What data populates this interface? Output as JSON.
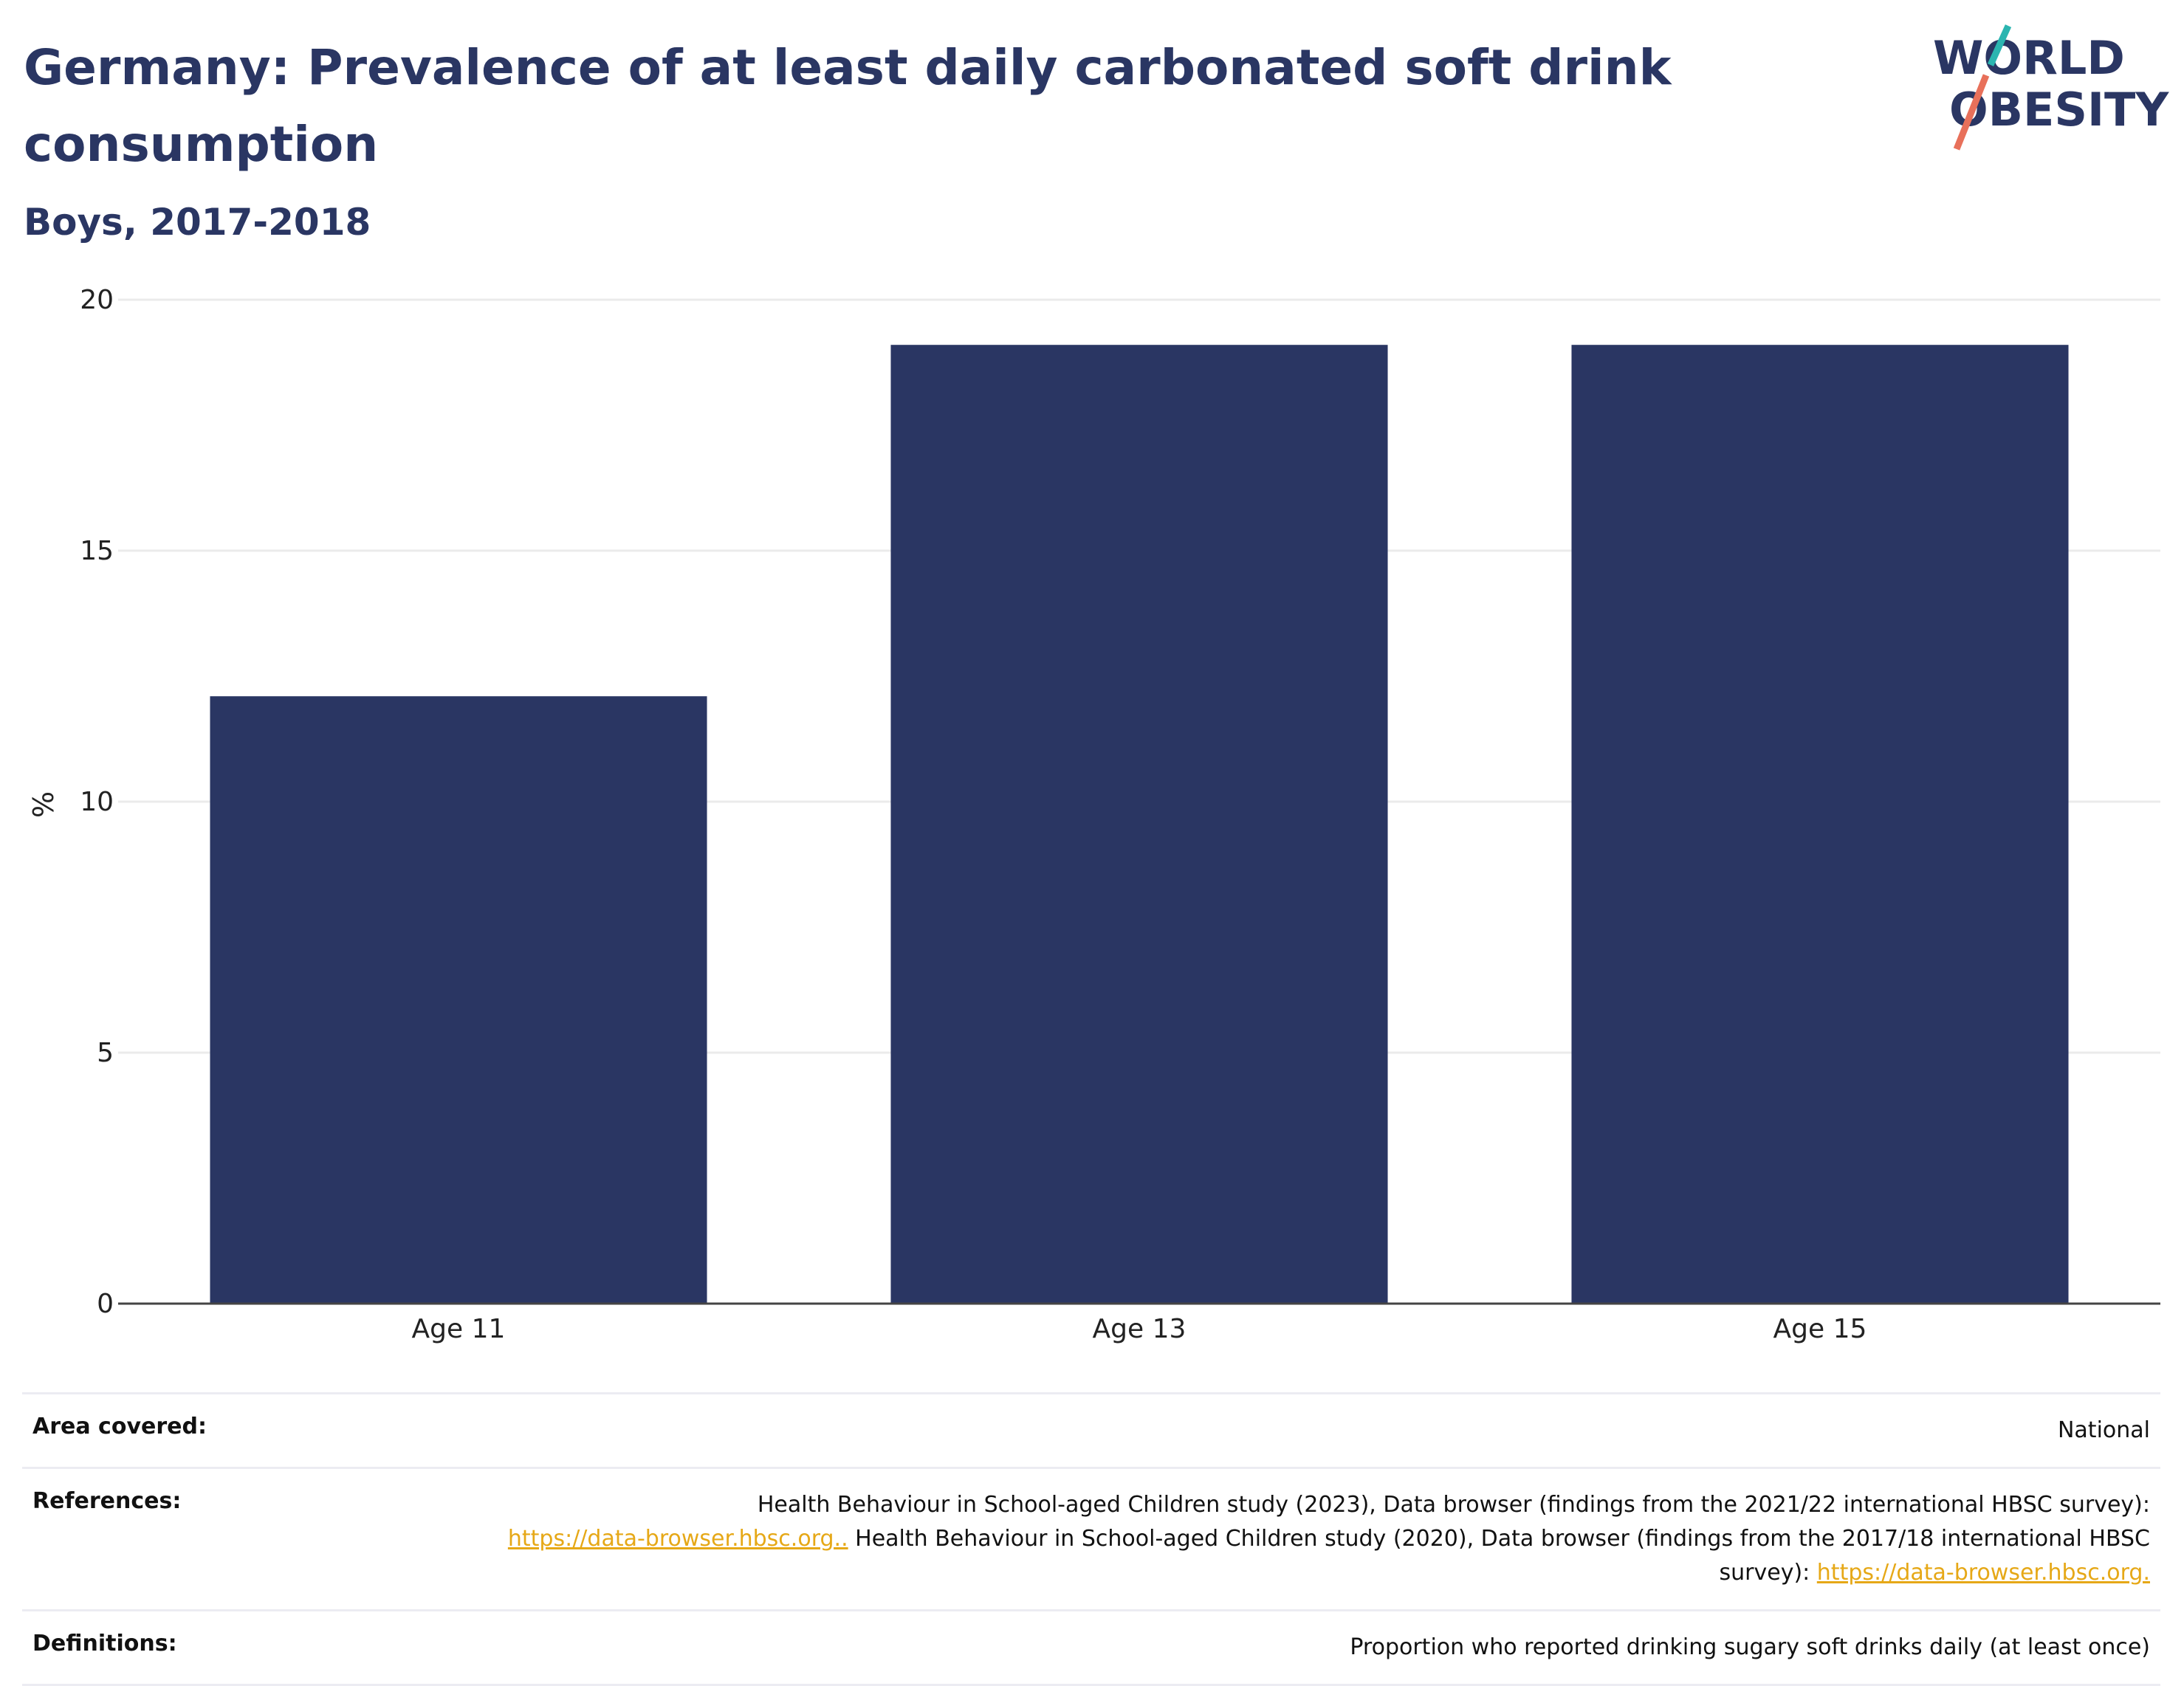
{
  "title": "Germany: Prevalence of at least daily carbonated soft drink consumption",
  "subtitle": "Boys, 2017-2018",
  "logo": {
    "line1": "WORLD",
    "line2": "OBESITY"
  },
  "colors": {
    "bar": "#2a3663",
    "title": "#2a3663",
    "link": "#e6a817",
    "accent_teal": "#2bb5b0",
    "accent_coral": "#e8705a"
  },
  "chart_data": {
    "type": "bar",
    "categories": [
      "Age 11",
      "Age 13",
      "Age 15"
    ],
    "values": [
      12.1,
      19.1,
      19.1
    ],
    "ylabel": "%",
    "xlabel": "",
    "ylim": [
      0,
      20
    ],
    "yticks": [
      0,
      5,
      10,
      15,
      20
    ],
    "grid": true
  },
  "meta": {
    "area_key": "Area covered:",
    "area_val": "National",
    "ref_key": "References:",
    "ref_text1": "Health Behaviour in School-aged Children study (2023), Data browser (findings from the 2021/22 international HBSC survey):",
    "ref_link1": "https://data-browser.hbsc.org..",
    "ref_text2": " Health Behaviour in School-aged Children study (2020), Data browser (findings from the 2017/18 international HBSC survey): ",
    "ref_link2": "https://data-browser.hbsc.org.",
    "def_key": "Definitions:",
    "def_val": "Proportion who reported drinking sugary soft drinks daily (at least once)"
  }
}
